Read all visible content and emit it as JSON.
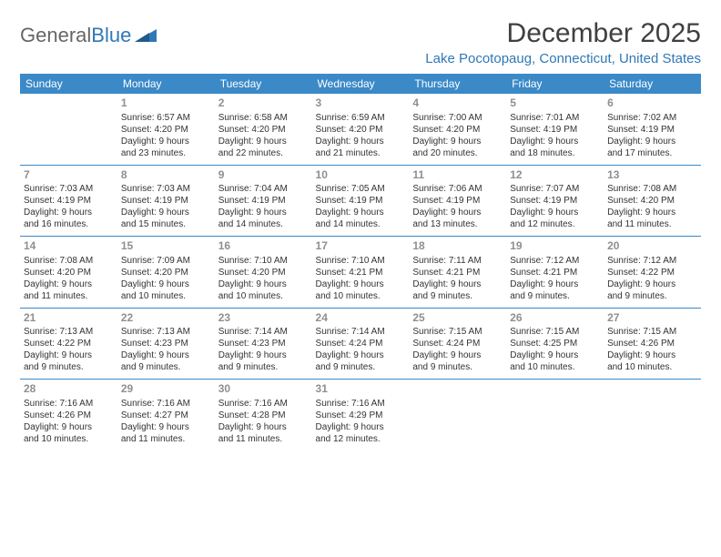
{
  "logo": {
    "part1": "General",
    "part2": "Blue"
  },
  "title": "December 2025",
  "location": "Lake Pocotopaug, Connecticut, United States",
  "colors": {
    "header_bg": "#3b89c7",
    "header_text": "#ffffff",
    "accent": "#2f78b7",
    "daynum": "#8f8f8f",
    "body_text": "#333333",
    "page_bg": "#ffffff"
  },
  "typography": {
    "title_fontsize": 30,
    "location_fontsize": 15,
    "header_cell_fontsize": 12,
    "daynum_fontsize": 12,
    "body_fontsize": 10
  },
  "days_of_week": [
    "Sunday",
    "Monday",
    "Tuesday",
    "Wednesday",
    "Thursday",
    "Friday",
    "Saturday"
  ],
  "weeks": [
    [
      null,
      {
        "n": "1",
        "sunrise": "Sunrise: 6:57 AM",
        "sunset": "Sunset: 4:20 PM",
        "dl1": "Daylight: 9 hours",
        "dl2": "and 23 minutes."
      },
      {
        "n": "2",
        "sunrise": "Sunrise: 6:58 AM",
        "sunset": "Sunset: 4:20 PM",
        "dl1": "Daylight: 9 hours",
        "dl2": "and 22 minutes."
      },
      {
        "n": "3",
        "sunrise": "Sunrise: 6:59 AM",
        "sunset": "Sunset: 4:20 PM",
        "dl1": "Daylight: 9 hours",
        "dl2": "and 21 minutes."
      },
      {
        "n": "4",
        "sunrise": "Sunrise: 7:00 AM",
        "sunset": "Sunset: 4:20 PM",
        "dl1": "Daylight: 9 hours",
        "dl2": "and 20 minutes."
      },
      {
        "n": "5",
        "sunrise": "Sunrise: 7:01 AM",
        "sunset": "Sunset: 4:19 PM",
        "dl1": "Daylight: 9 hours",
        "dl2": "and 18 minutes."
      },
      {
        "n": "6",
        "sunrise": "Sunrise: 7:02 AM",
        "sunset": "Sunset: 4:19 PM",
        "dl1": "Daylight: 9 hours",
        "dl2": "and 17 minutes."
      }
    ],
    [
      {
        "n": "7",
        "sunrise": "Sunrise: 7:03 AM",
        "sunset": "Sunset: 4:19 PM",
        "dl1": "Daylight: 9 hours",
        "dl2": "and 16 minutes."
      },
      {
        "n": "8",
        "sunrise": "Sunrise: 7:03 AM",
        "sunset": "Sunset: 4:19 PM",
        "dl1": "Daylight: 9 hours",
        "dl2": "and 15 minutes."
      },
      {
        "n": "9",
        "sunrise": "Sunrise: 7:04 AM",
        "sunset": "Sunset: 4:19 PM",
        "dl1": "Daylight: 9 hours",
        "dl2": "and 14 minutes."
      },
      {
        "n": "10",
        "sunrise": "Sunrise: 7:05 AM",
        "sunset": "Sunset: 4:19 PM",
        "dl1": "Daylight: 9 hours",
        "dl2": "and 14 minutes."
      },
      {
        "n": "11",
        "sunrise": "Sunrise: 7:06 AM",
        "sunset": "Sunset: 4:19 PM",
        "dl1": "Daylight: 9 hours",
        "dl2": "and 13 minutes."
      },
      {
        "n": "12",
        "sunrise": "Sunrise: 7:07 AM",
        "sunset": "Sunset: 4:19 PM",
        "dl1": "Daylight: 9 hours",
        "dl2": "and 12 minutes."
      },
      {
        "n": "13",
        "sunrise": "Sunrise: 7:08 AM",
        "sunset": "Sunset: 4:20 PM",
        "dl1": "Daylight: 9 hours",
        "dl2": "and 11 minutes."
      }
    ],
    [
      {
        "n": "14",
        "sunrise": "Sunrise: 7:08 AM",
        "sunset": "Sunset: 4:20 PM",
        "dl1": "Daylight: 9 hours",
        "dl2": "and 11 minutes."
      },
      {
        "n": "15",
        "sunrise": "Sunrise: 7:09 AM",
        "sunset": "Sunset: 4:20 PM",
        "dl1": "Daylight: 9 hours",
        "dl2": "and 10 minutes."
      },
      {
        "n": "16",
        "sunrise": "Sunrise: 7:10 AM",
        "sunset": "Sunset: 4:20 PM",
        "dl1": "Daylight: 9 hours",
        "dl2": "and 10 minutes."
      },
      {
        "n": "17",
        "sunrise": "Sunrise: 7:10 AM",
        "sunset": "Sunset: 4:21 PM",
        "dl1": "Daylight: 9 hours",
        "dl2": "and 10 minutes."
      },
      {
        "n": "18",
        "sunrise": "Sunrise: 7:11 AM",
        "sunset": "Sunset: 4:21 PM",
        "dl1": "Daylight: 9 hours",
        "dl2": "and 9 minutes."
      },
      {
        "n": "19",
        "sunrise": "Sunrise: 7:12 AM",
        "sunset": "Sunset: 4:21 PM",
        "dl1": "Daylight: 9 hours",
        "dl2": "and 9 minutes."
      },
      {
        "n": "20",
        "sunrise": "Sunrise: 7:12 AM",
        "sunset": "Sunset: 4:22 PM",
        "dl1": "Daylight: 9 hours",
        "dl2": "and 9 minutes."
      }
    ],
    [
      {
        "n": "21",
        "sunrise": "Sunrise: 7:13 AM",
        "sunset": "Sunset: 4:22 PM",
        "dl1": "Daylight: 9 hours",
        "dl2": "and 9 minutes."
      },
      {
        "n": "22",
        "sunrise": "Sunrise: 7:13 AM",
        "sunset": "Sunset: 4:23 PM",
        "dl1": "Daylight: 9 hours",
        "dl2": "and 9 minutes."
      },
      {
        "n": "23",
        "sunrise": "Sunrise: 7:14 AM",
        "sunset": "Sunset: 4:23 PM",
        "dl1": "Daylight: 9 hours",
        "dl2": "and 9 minutes."
      },
      {
        "n": "24",
        "sunrise": "Sunrise: 7:14 AM",
        "sunset": "Sunset: 4:24 PM",
        "dl1": "Daylight: 9 hours",
        "dl2": "and 9 minutes."
      },
      {
        "n": "25",
        "sunrise": "Sunrise: 7:15 AM",
        "sunset": "Sunset: 4:24 PM",
        "dl1": "Daylight: 9 hours",
        "dl2": "and 9 minutes."
      },
      {
        "n": "26",
        "sunrise": "Sunrise: 7:15 AM",
        "sunset": "Sunset: 4:25 PM",
        "dl1": "Daylight: 9 hours",
        "dl2": "and 10 minutes."
      },
      {
        "n": "27",
        "sunrise": "Sunrise: 7:15 AM",
        "sunset": "Sunset: 4:26 PM",
        "dl1": "Daylight: 9 hours",
        "dl2": "and 10 minutes."
      }
    ],
    [
      {
        "n": "28",
        "sunrise": "Sunrise: 7:16 AM",
        "sunset": "Sunset: 4:26 PM",
        "dl1": "Daylight: 9 hours",
        "dl2": "and 10 minutes."
      },
      {
        "n": "29",
        "sunrise": "Sunrise: 7:16 AM",
        "sunset": "Sunset: 4:27 PM",
        "dl1": "Daylight: 9 hours",
        "dl2": "and 11 minutes."
      },
      {
        "n": "30",
        "sunrise": "Sunrise: 7:16 AM",
        "sunset": "Sunset: 4:28 PM",
        "dl1": "Daylight: 9 hours",
        "dl2": "and 11 minutes."
      },
      {
        "n": "31",
        "sunrise": "Sunrise: 7:16 AM",
        "sunset": "Sunset: 4:29 PM",
        "dl1": "Daylight: 9 hours",
        "dl2": "and 12 minutes."
      },
      null,
      null,
      null
    ]
  ]
}
